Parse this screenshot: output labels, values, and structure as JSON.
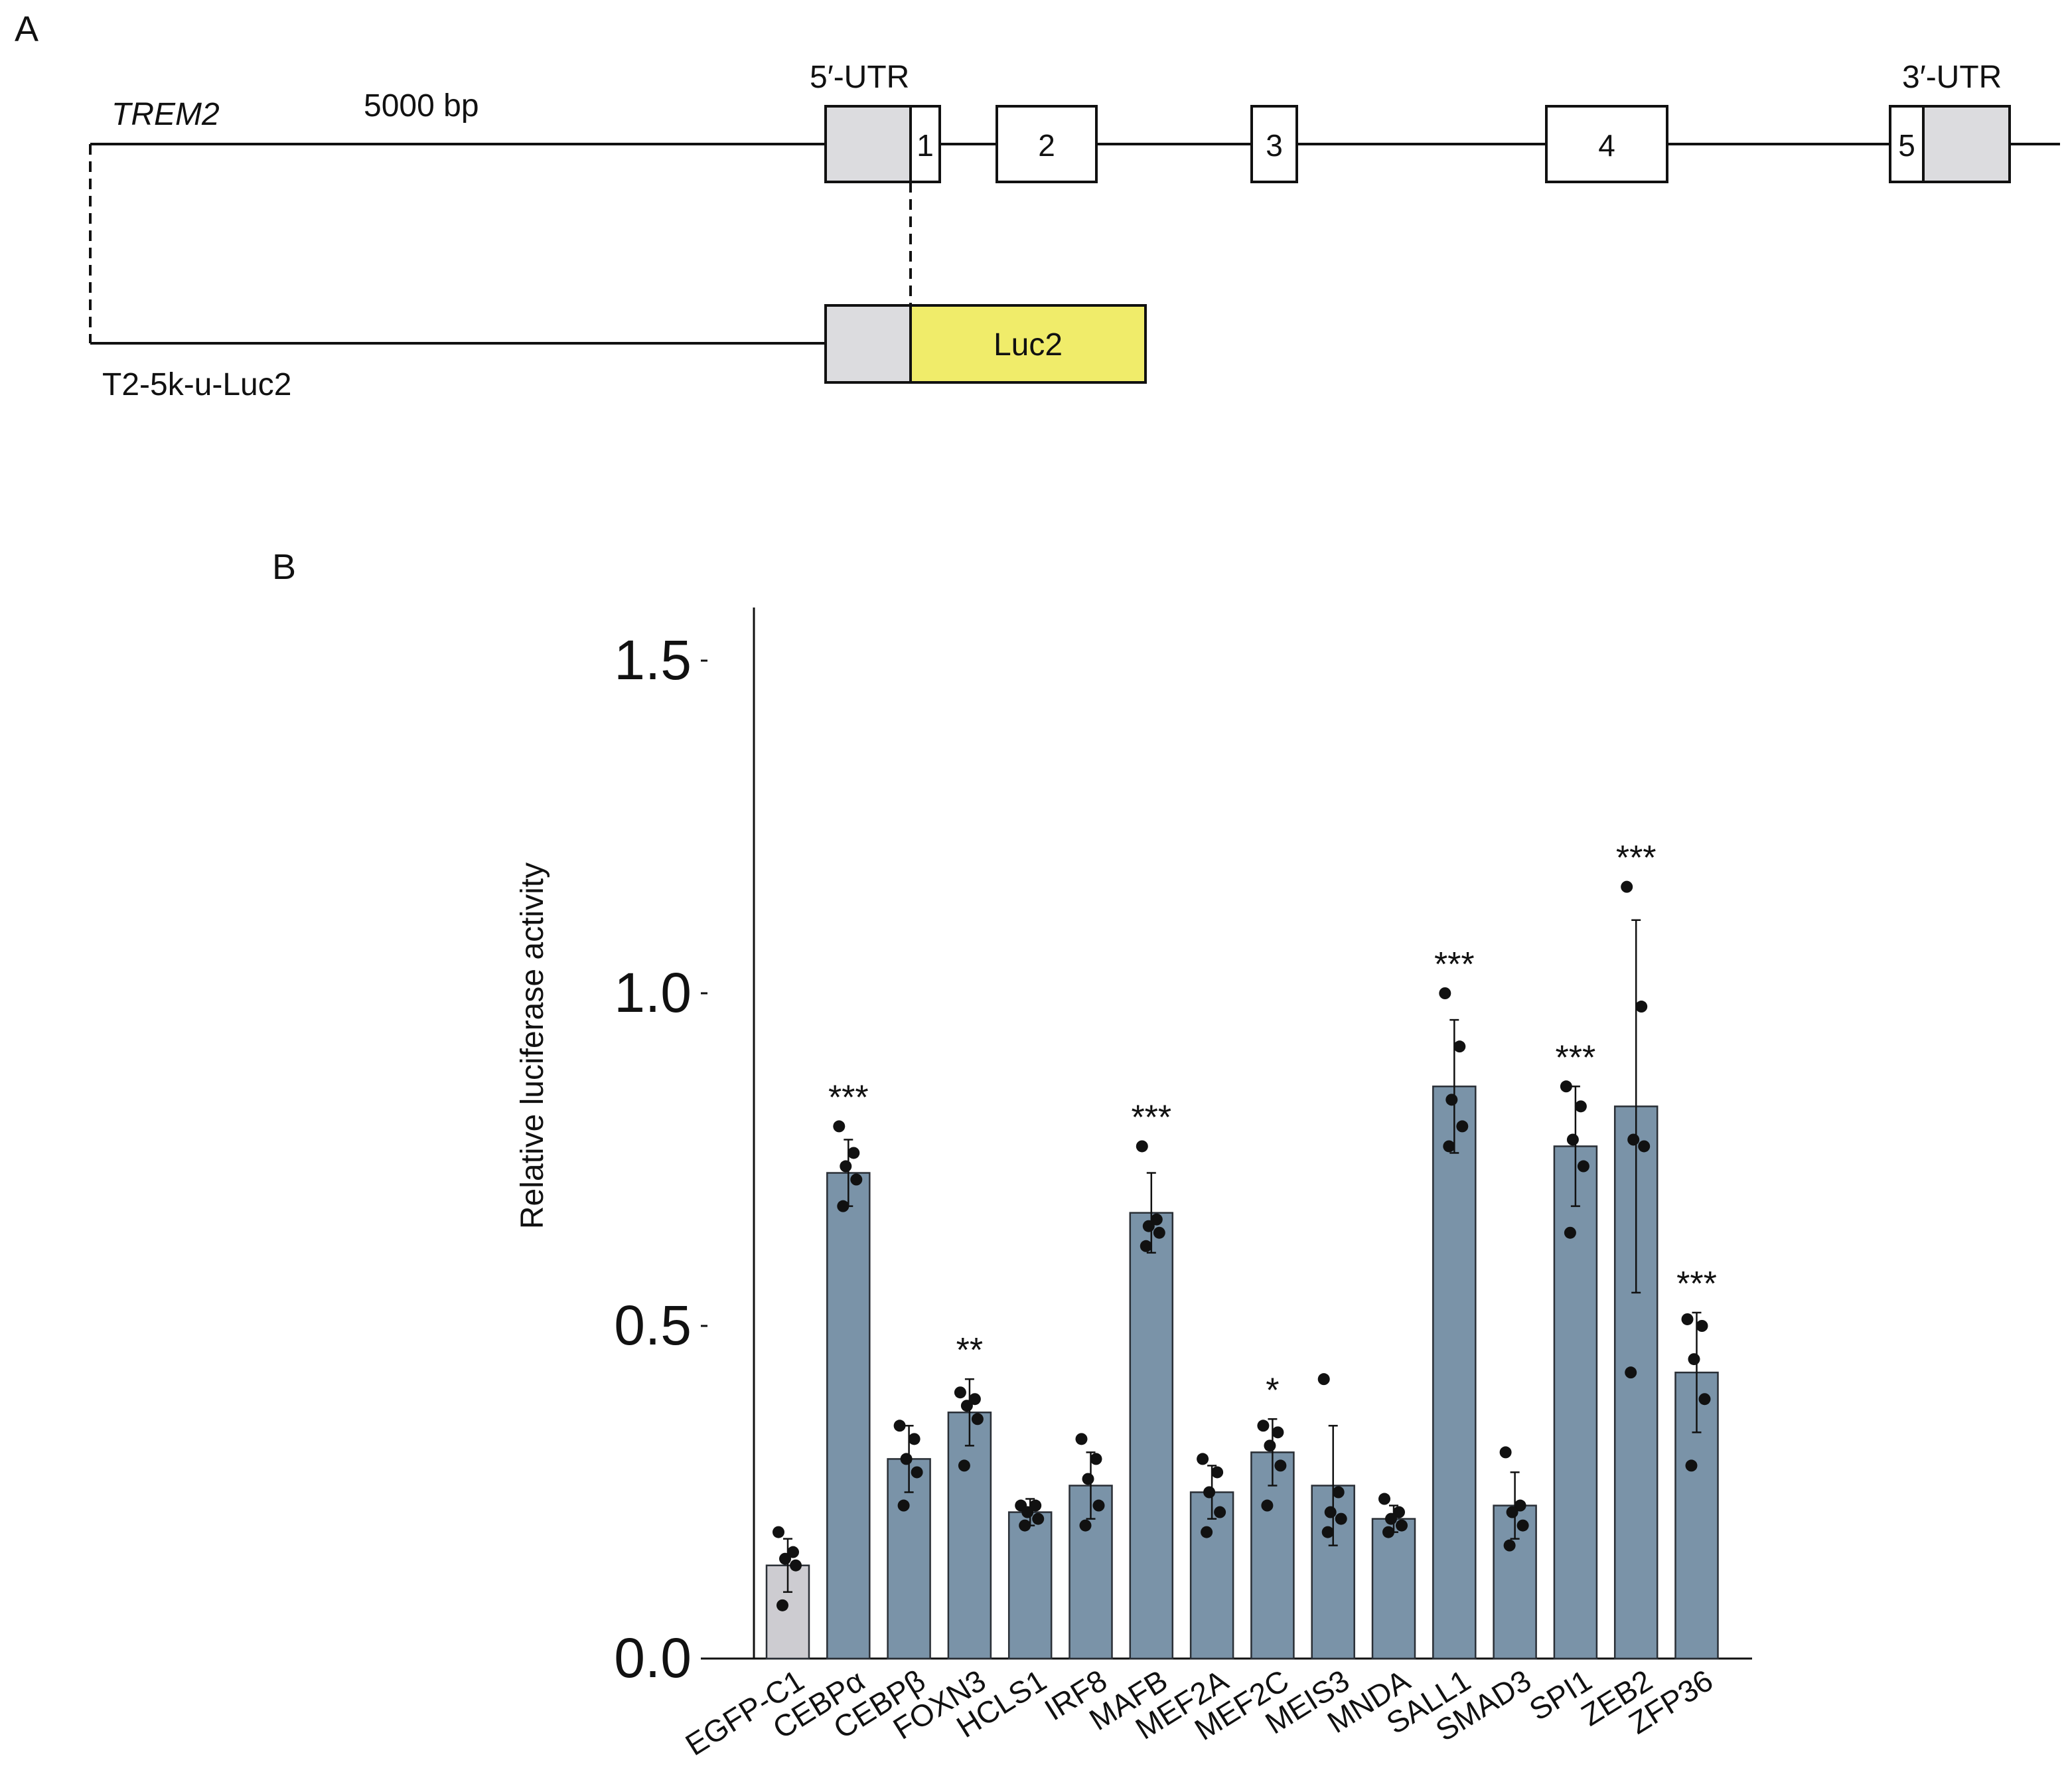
{
  "panel_a": {
    "panel_label": "A",
    "gene_label": "TREM2",
    "scale_label": "5000 bp",
    "utr5_label": "5′-UTR",
    "utr3_label": "3′-UTR",
    "exons": [
      "1",
      "2",
      "3",
      "4",
      "5"
    ],
    "construct_label": "T2-5k-u-Luc2",
    "reporter_label": "Luc2",
    "colors": {
      "utr": "#dcdcdf",
      "exon": "#ffffff",
      "luc2": "#f0ec6a",
      "line": "#111111"
    }
  },
  "panel_b": {
    "panel_label": "B"
  },
  "chart_data": {
    "type": "bar",
    "ylabel": "Relative luciferase activity",
    "ylim": [
      0,
      1.5
    ],
    "yticks": [
      "0.0",
      "0.5",
      "1.0",
      "1.5"
    ],
    "categories": [
      "EGFP-C1",
      "CEBPα",
      "CEBPβ",
      "FOXN3",
      "HCLS1",
      "IRF8",
      "MAFB",
      "MEF2A",
      "MEF2C",
      "MEIS3",
      "MNDA",
      "SALL1",
      "SMAD3",
      "SPI1",
      "ZEB2",
      "ZFP36"
    ],
    "values": [
      0.14,
      0.73,
      0.3,
      0.37,
      0.22,
      0.26,
      0.67,
      0.25,
      0.31,
      0.26,
      0.21,
      0.86,
      0.23,
      0.77,
      0.83,
      0.43
    ],
    "errors": [
      0.04,
      0.05,
      0.05,
      0.05,
      0.02,
      0.05,
      0.06,
      0.04,
      0.05,
      0.09,
      0.02,
      0.1,
      0.05,
      0.09,
      0.28,
      0.09
    ],
    "points": [
      [
        0.19,
        0.16,
        0.15,
        0.14,
        0.08
      ],
      [
        0.8,
        0.76,
        0.74,
        0.72,
        0.68
      ],
      [
        0.35,
        0.33,
        0.3,
        0.28,
        0.23
      ],
      [
        0.4,
        0.39,
        0.38,
        0.36,
        0.29
      ],
      [
        0.23,
        0.23,
        0.22,
        0.21,
        0.2
      ],
      [
        0.33,
        0.3,
        0.27,
        0.23,
        0.2
      ],
      [
        0.77,
        0.66,
        0.65,
        0.64,
        0.62
      ],
      [
        0.3,
        0.28,
        0.25,
        0.22,
        0.19
      ],
      [
        0.35,
        0.34,
        0.32,
        0.29,
        0.23
      ],
      [
        0.42,
        0.25,
        0.22,
        0.21,
        0.19
      ],
      [
        0.24,
        0.22,
        0.21,
        0.2,
        0.19
      ],
      [
        1.0,
        0.92,
        0.84,
        0.8,
        0.77
      ],
      [
        0.31,
        0.23,
        0.22,
        0.2,
        0.17
      ],
      [
        0.86,
        0.83,
        0.78,
        0.74,
        0.64
      ],
      [
        1.16,
        0.98,
        0.78,
        0.77,
        0.43
      ],
      [
        0.51,
        0.5,
        0.45,
        0.39,
        0.29
      ]
    ],
    "significance": [
      "",
      "***",
      "",
      "**",
      "",
      "",
      "***",
      "",
      "*",
      "",
      "",
      "***",
      "",
      "***",
      "***",
      "***"
    ],
    "bar_colors": [
      "#cdccd1",
      "#7a93a8",
      "#7a93a8",
      "#7a93a8",
      "#7a93a8",
      "#7a93a8",
      "#7a93a8",
      "#7a93a8",
      "#7a93a8",
      "#7a93a8",
      "#7a93a8",
      "#7a93a8",
      "#7a93a8",
      "#7a93a8",
      "#7a93a8",
      "#7a93a8"
    ],
    "grid": false
  }
}
